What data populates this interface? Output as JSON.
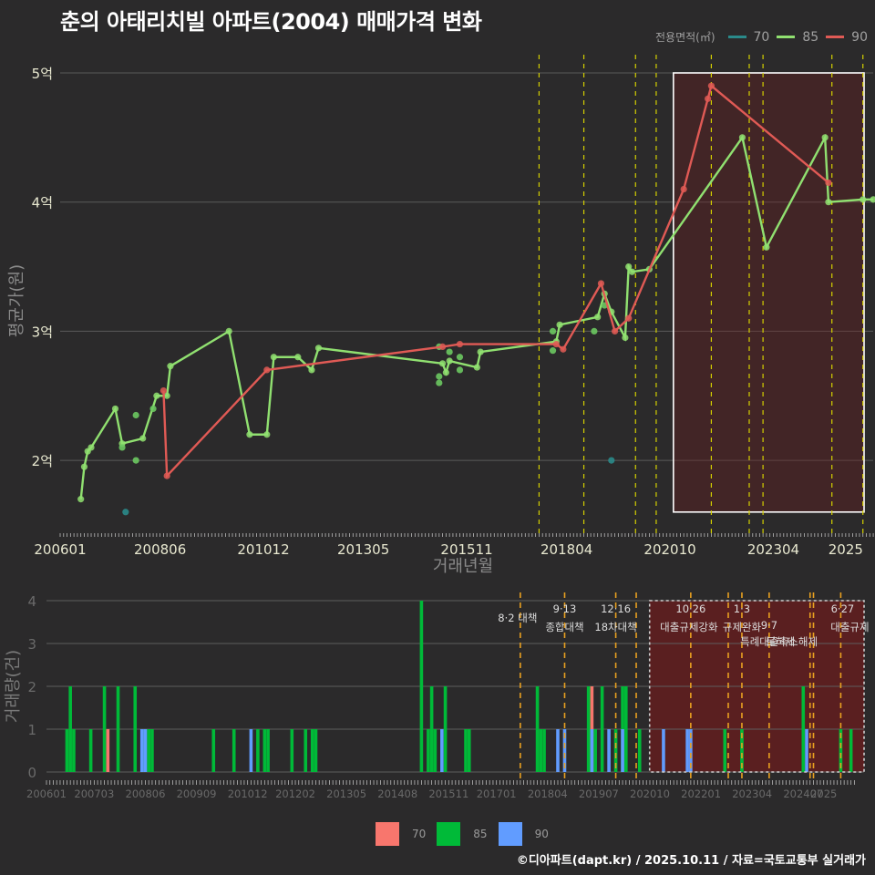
{
  "title": "춘의 아태리치빌 아파트(2004) 매매가격 변화",
  "legend_top": {
    "label": "전용면적(㎡)",
    "items": [
      {
        "name": "70",
        "color": "#2a8a8a"
      },
      {
        "name": "85",
        "color": "#90e070"
      },
      {
        "name": "90",
        "color": "#e05a55"
      }
    ]
  },
  "legend_bottom": {
    "items": [
      {
        "name": "70",
        "color": "#f8766d"
      },
      {
        "name": "85",
        "color": "#00ba38"
      },
      {
        "name": "90",
        "color": "#619cff"
      }
    ]
  },
  "footer": "©디아파트(dapt.kr) / 2025.10.11 / 자료=국토교통부 실거래가",
  "chart_data": [
    {
      "type": "line",
      "title": "춘의 아태리치빌 아파트(2004) 매매가격 변화",
      "xlabel": "거래년월",
      "ylabel": "평균가(원)",
      "x_ticks": [
        "200601",
        "200806",
        "201012",
        "201305",
        "201511",
        "201804",
        "202010",
        "202304",
        "2025"
      ],
      "y_ticks": [
        "2억",
        "3억",
        "4억",
        "5억"
      ],
      "ylim": [
        1.45,
        5.05
      ],
      "y_unit": "억",
      "grid": true,
      "legend_position": "top-right",
      "highlight_box": {
        "from": "2020-11",
        "to": "2025-10"
      },
      "policy_lines": [
        "2017-08",
        "2018-09",
        "2019-12",
        "2020-06",
        "2021-10",
        "2022-09",
        "2023-01",
        "2024-09",
        "2025-06"
      ],
      "series": [
        {
          "name": "85",
          "line": [
            [
              "2006-07",
              1.7
            ],
            [
              "2006-08",
              1.95
            ],
            [
              "2006-09",
              2.07
            ],
            [
              "2006-10",
              2.1
            ],
            [
              "2007-05",
              2.4
            ],
            [
              "2007-07",
              2.13
            ],
            [
              "2008-01",
              2.17
            ],
            [
              "2008-05",
              2.5
            ],
            [
              "2008-08",
              2.5
            ],
            [
              "2008-09",
              2.73
            ],
            [
              "2010-02",
              3.0
            ],
            [
              "2010-08",
              2.2
            ],
            [
              "2011-01",
              2.2
            ],
            [
              "2011-03",
              2.8
            ],
            [
              "2011-10",
              2.8
            ],
            [
              "2012-02",
              2.7
            ],
            [
              "2012-04",
              2.87
            ],
            [
              "2015-04",
              2.75
            ],
            [
              "2015-05",
              2.68
            ],
            [
              "2015-06",
              2.77
            ],
            [
              "2016-02",
              2.72
            ],
            [
              "2016-03",
              2.84
            ],
            [
              "2018-01",
              2.92
            ],
            [
              "2018-02",
              3.05
            ],
            [
              "2019-01",
              3.11
            ],
            [
              "2019-03",
              3.29
            ],
            [
              "2019-05",
              3.15
            ],
            [
              "2019-09",
              2.95
            ],
            [
              "2019-10",
              3.5
            ],
            [
              "2019-11",
              3.46
            ],
            [
              "2020-04",
              3.48
            ],
            [
              "2022-07",
              4.5
            ],
            [
              "2023-02",
              3.65
            ],
            [
              "2024-07",
              4.5
            ],
            [
              "2024-08",
              4.0
            ],
            [
              "2025-06",
              4.02
            ],
            [
              "2025-09",
              4.02
            ]
          ],
          "points_extra": [
            [
              "2007-07",
              2.1
            ],
            [
              "2007-11",
              2.35
            ],
            [
              "2007-11",
              2.0
            ],
            [
              "2008-04",
              2.4
            ],
            [
              "2015-03",
              2.88
            ],
            [
              "2015-03",
              2.6
            ],
            [
              "2015-03",
              2.65
            ],
            [
              "2015-06",
              2.84
            ],
            [
              "2015-09",
              2.8
            ],
            [
              "2015-09",
              2.7
            ],
            [
              "2017-12",
              2.85
            ],
            [
              "2017-12",
              3.0
            ],
            [
              "2018-12",
              3.0
            ],
            [
              "2019-03",
              3.2
            ]
          ]
        },
        {
          "name": "90",
          "line": [
            [
              "2008-07",
              2.54
            ],
            [
              "2008-08",
              1.88
            ],
            [
              "2011-01",
              2.7
            ],
            [
              "2015-04",
              2.88
            ],
            [
              "2015-09",
              2.9
            ],
            [
              "2018-01",
              2.9
            ],
            [
              "2018-03",
              2.86
            ],
            [
              "2019-02",
              3.37
            ],
            [
              "2019-06",
              3.0
            ],
            [
              "2019-10",
              3.1
            ],
            [
              "2021-02",
              4.1
            ],
            [
              "2021-09",
              4.8
            ],
            [
              "2021-10",
              4.9
            ],
            [
              "2024-08",
              4.15
            ]
          ],
          "points_extra": []
        },
        {
          "name": "70",
          "line": [],
          "points_extra": [
            [
              "2007-08",
              1.6
            ],
            [
              "2019-05",
              2.0
            ]
          ]
        }
      ]
    },
    {
      "type": "bar",
      "xlabel": "",
      "ylabel": "거래량(건)",
      "x_ticks": [
        "200601",
        "200703",
        "200806",
        "200909",
        "201012",
        "201202",
        "201305",
        "201408",
        "201511",
        "201701",
        "201804",
        "201907",
        "202010",
        "202201",
        "202304",
        "202407",
        "2025"
      ],
      "y_ticks": [
        "0",
        "1",
        "2",
        "3",
        "4"
      ],
      "ylim": [
        0,
        4.2
      ],
      "policy_annotations": [
        {
          "date": "2017-08",
          "label": "8·2 대책"
        },
        {
          "date": "2018-09",
          "label": "9·13 종합대책"
        },
        {
          "date": "2019-12",
          "label": "12·16 18차대책"
        },
        {
          "date": "2021-10",
          "label": "10·26 대출규제강화"
        },
        {
          "date": "2023-01",
          "label": "1·3 규제완화"
        },
        {
          "date": "2023-09",
          "label": "9·7 특례대출축소"
        },
        {
          "date": "2024-09",
          "label": "토허제 해제"
        },
        {
          "date": "2025-06",
          "label": "6·27 대출규제"
        }
      ],
      "series": [
        {
          "name": "70",
          "values": [
            [
              "2007-07",
              1
            ],
            [
              "2019-05",
              2
            ]
          ]
        },
        {
          "name": "85",
          "values": [
            [
              "2006-07",
              1
            ],
            [
              "2006-08",
              2
            ],
            [
              "2006-09",
              1
            ],
            [
              "2007-02",
              1
            ],
            [
              "2007-06",
              2
            ],
            [
              "2007-10",
              2
            ],
            [
              "2008-03",
              2
            ],
            [
              "2008-06",
              1
            ],
            [
              "2008-07",
              1
            ],
            [
              "2008-08",
              1
            ],
            [
              "2010-02",
              1
            ],
            [
              "2010-08",
              1
            ],
            [
              "2011-03",
              1
            ],
            [
              "2011-05",
              1
            ],
            [
              "2011-06",
              1
            ],
            [
              "2012-01",
              1
            ],
            [
              "2012-05",
              1
            ],
            [
              "2012-07",
              1
            ],
            [
              "2012-08",
              1
            ],
            [
              "2015-03",
              4
            ],
            [
              "2015-05",
              1
            ],
            [
              "2015-06",
              2
            ],
            [
              "2015-07",
              1
            ],
            [
              "2015-10",
              2
            ],
            [
              "2016-04",
              1
            ],
            [
              "2016-05",
              1
            ],
            [
              "2018-01",
              2
            ],
            [
              "2018-02",
              1
            ],
            [
              "2018-03",
              1
            ],
            [
              "2019-04",
              2
            ],
            [
              "2019-06",
              1
            ],
            [
              "2019-08",
              2
            ],
            [
              "2019-12",
              1
            ],
            [
              "2020-02",
              2
            ],
            [
              "2020-03",
              2
            ],
            [
              "2020-07",
              1
            ],
            [
              "2022-08",
              1
            ],
            [
              "2023-01",
              1
            ],
            [
              "2024-07",
              2
            ],
            [
              "2025-06",
              1
            ],
            [
              "2025-09",
              1
            ]
          ]
        },
        {
          "name": "90",
          "values": [
            [
              "2008-05",
              1
            ],
            [
              "2008-06",
              1
            ],
            [
              "2011-01",
              1
            ],
            [
              "2015-09",
              1
            ],
            [
              "2018-07",
              1
            ],
            [
              "2018-09",
              1
            ],
            [
              "2019-05",
              1
            ],
            [
              "2019-10",
              1
            ],
            [
              "2020-02",
              1
            ],
            [
              "2021-02",
              1
            ],
            [
              "2021-09",
              1
            ],
            [
              "2021-10",
              1
            ],
            [
              "2024-08",
              1
            ]
          ]
        }
      ]
    }
  ]
}
